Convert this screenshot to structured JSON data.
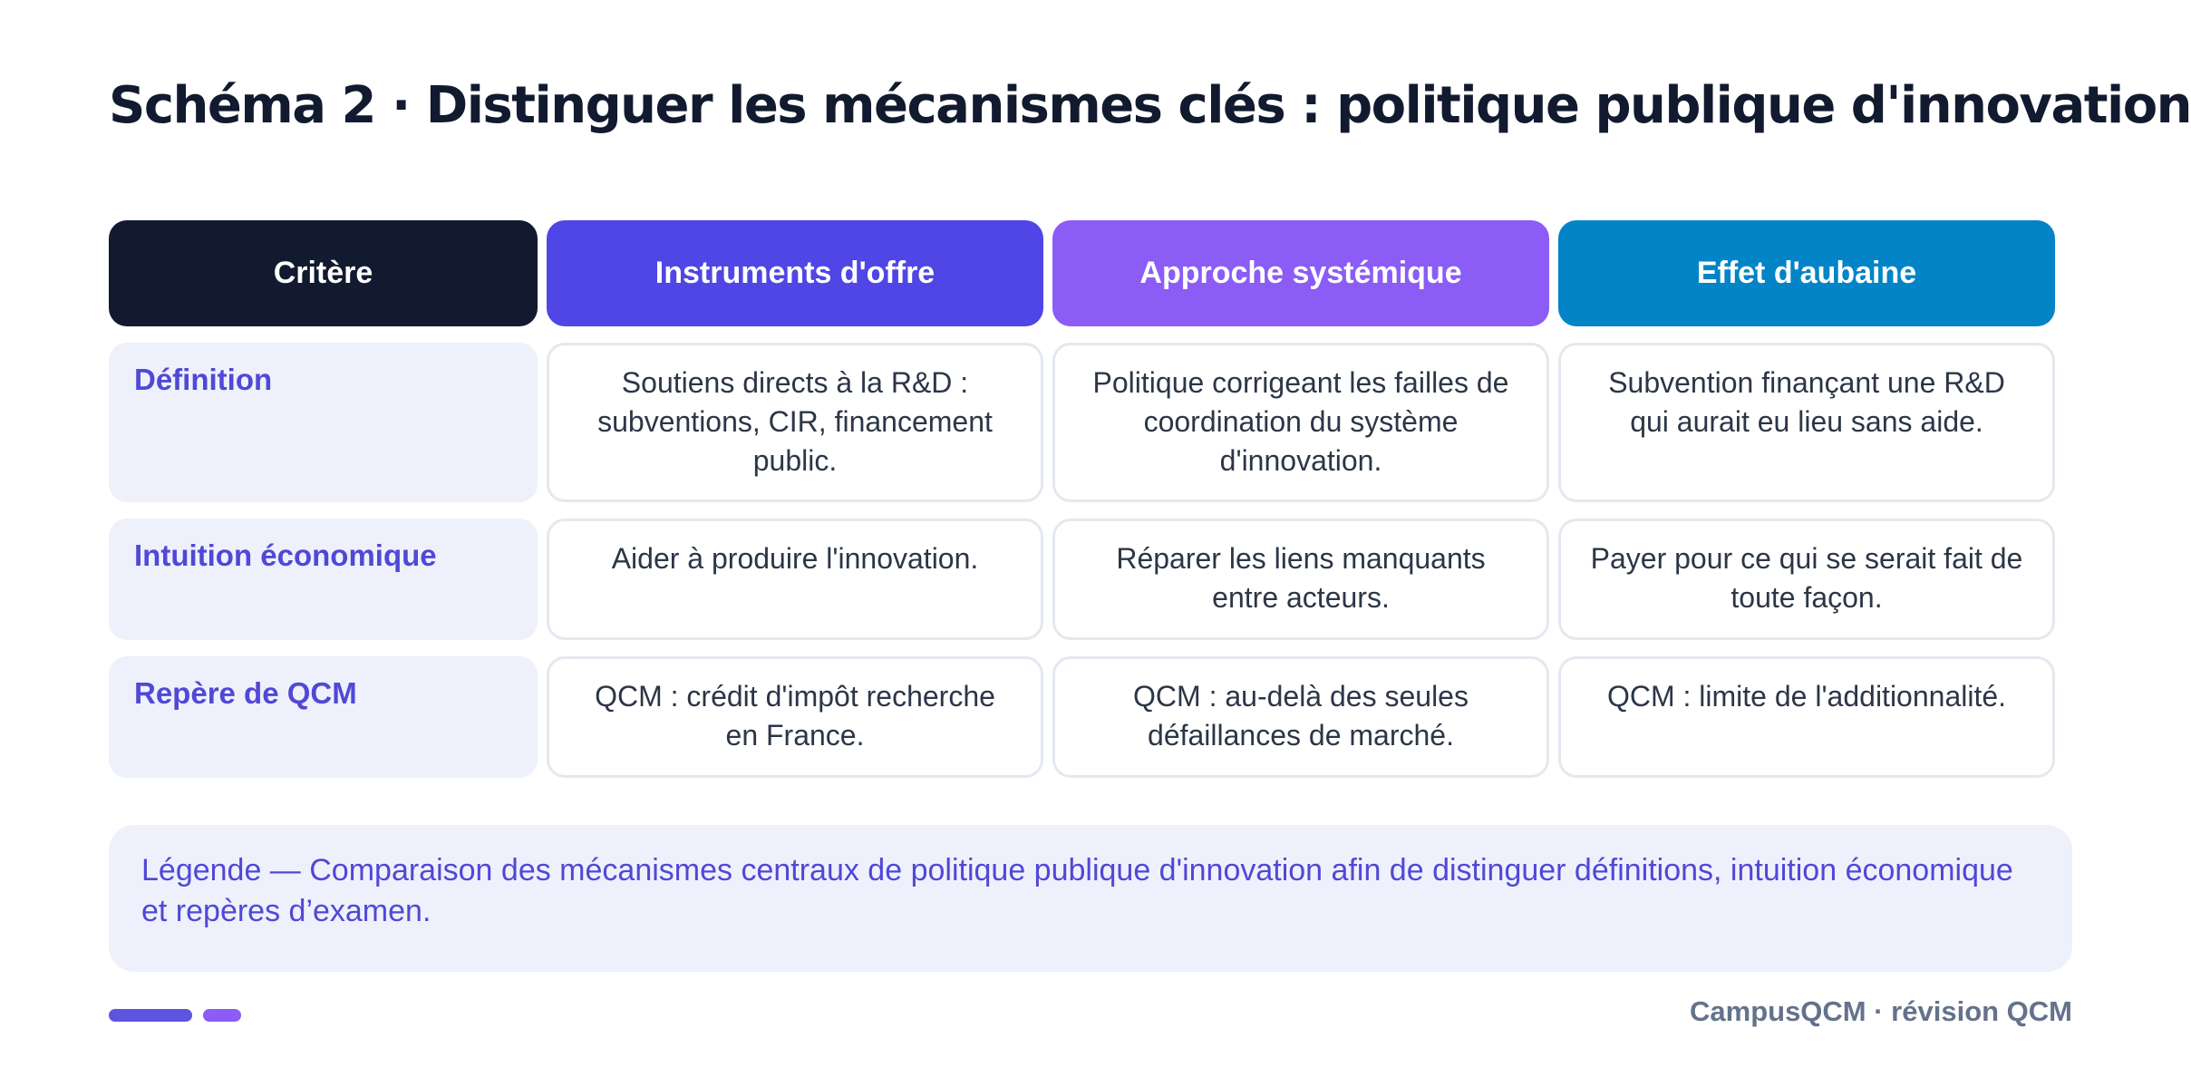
{
  "title": "Schéma 2 · Distinguer les mécanismes clés : politique publique d'innovation",
  "table": {
    "headers": [
      "Critère",
      "Instruments d'offre",
      "Approche systémique",
      "Effet d'aubaine"
    ],
    "header_colors": [
      "#111a2e",
      "#4f46e5",
      "#8b5cf6",
      "#0284c7"
    ],
    "rows": [
      {
        "label": "Définition",
        "cells": [
          "Soutiens directs à la R&D : subventions, CIR, financement public.",
          "Politique corrigeant les failles de coordination du système d'innovation.",
          "Subvention finançant une R&D qui aurait eu lieu sans aide."
        ]
      },
      {
        "label": "Intuition économique",
        "cells": [
          "Aider à produire l'innovation.",
          "Réparer les liens manquants entre acteurs.",
          "Payer pour ce qui se serait fait de toute façon."
        ]
      },
      {
        "label": "Repère de QCM",
        "cells": [
          "QCM : crédit d'impôt recherche en France.",
          "QCM : au-delà des seules défaillances de marché.",
          "QCM : limite de l'additionnalité."
        ]
      }
    ]
  },
  "legend": "Légende — Comparaison des mécanismes centraux de politique publique d'innovation afin de distinguer définitions, intuition économique et repères d’examen.",
  "footer": "CampusQCM · révision QCM"
}
